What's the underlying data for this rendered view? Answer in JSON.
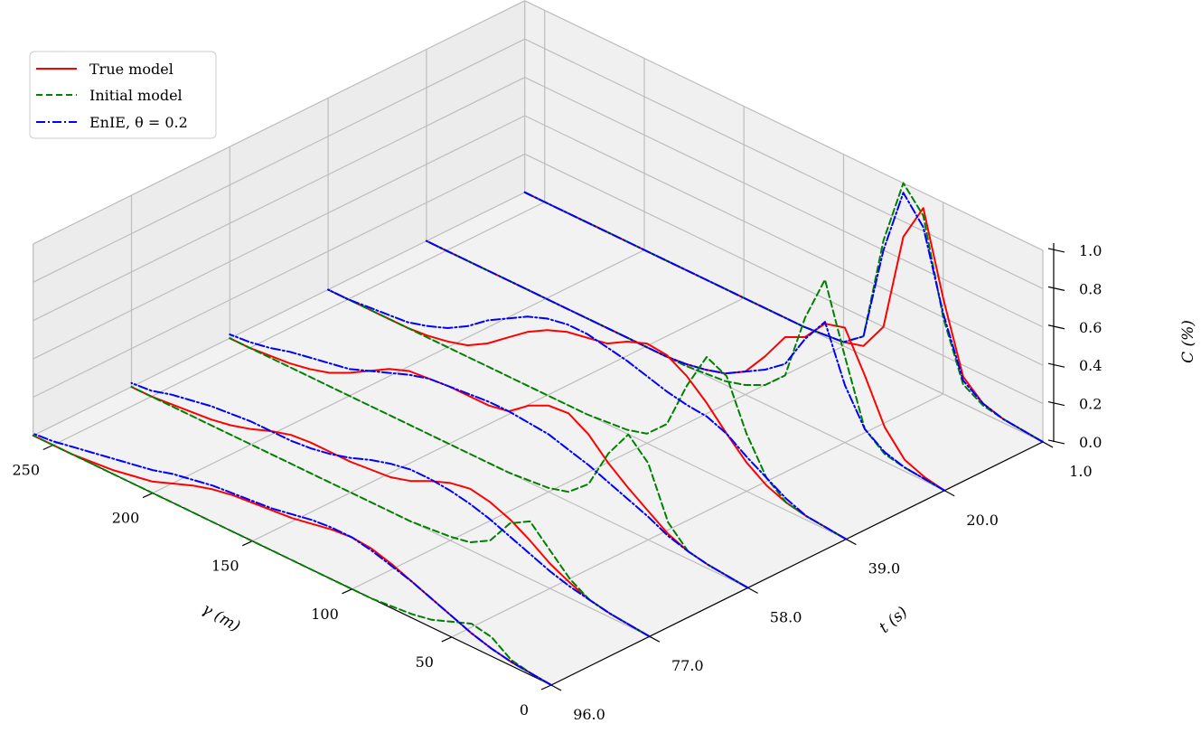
{
  "chart_data": {
    "type": "line",
    "title": "",
    "projection": "3d",
    "xlabel": "γ (m)",
    "ylabel": "t (s)",
    "zlabel": "C (%)",
    "xlim": [
      0,
      260
    ],
    "ylim": [
      96,
      1
    ],
    "zlim": [
      0,
      1.0
    ],
    "x_ticks": [
      "0",
      "50",
      "100",
      "150",
      "200",
      "250"
    ],
    "y_ticks": [
      "96.0",
      "77.0",
      "58.0",
      "39.0",
      "20.0",
      "1.0"
    ],
    "z_ticks": [
      "0.0",
      "0.2",
      "0.4",
      "0.6",
      "0.8",
      "1.0"
    ],
    "grid": true,
    "legend_position": "top-left",
    "gamma": [
      0,
      10,
      20,
      30,
      40,
      50,
      60,
      70,
      80,
      90,
      100,
      110,
      120,
      130,
      140,
      150,
      160,
      170,
      180,
      190,
      200,
      210,
      220,
      230,
      240,
      250,
      260
    ],
    "slices": [
      {
        "t": 1.0,
        "true_model": [
          0,
          0.01,
          0.02,
          0.05,
          0.14,
          0.5,
          0.92,
          0.72,
          0.2,
          0.05,
          0.02,
          0.01,
          0,
          0,
          0,
          0,
          0,
          0,
          0,
          0,
          0,
          0,
          0,
          0,
          0,
          0,
          0
        ],
        "initial_model": [
          0,
          0.01,
          0.02,
          0.04,
          0.1,
          0.4,
          0.88,
          1.0,
          0.65,
          0.1,
          0.02,
          0.01,
          0,
          0,
          0,
          0,
          0,
          0,
          0,
          0,
          0,
          0,
          0,
          0,
          0,
          0,
          0
        ],
        "enie": [
          0,
          0.01,
          0.02,
          0.05,
          0.12,
          0.42,
          0.82,
          0.95,
          0.6,
          0.1,
          0.02,
          0.01,
          0,
          0,
          0,
          0,
          0,
          0,
          0,
          0,
          0,
          0,
          0,
          0,
          0,
          0,
          0
        ]
      },
      {
        "t": 20.0,
        "true_model": [
          0,
          0.02,
          0.06,
          0.18,
          0.4,
          0.6,
          0.57,
          0.45,
          0.4,
          0.25,
          0.12,
          0.06,
          0.03,
          0.01,
          0,
          0,
          0,
          0,
          0,
          0,
          0,
          0,
          0,
          0,
          0,
          0,
          0
        ],
        "initial_model": [
          0,
          0.01,
          0.02,
          0.04,
          0.12,
          0.45,
          0.8,
          0.55,
          0.2,
          0.1,
          0.05,
          0.02,
          0.01,
          0,
          0,
          0,
          0,
          0,
          0,
          0,
          0,
          0,
          0,
          0,
          0,
          0,
          0
        ],
        "enie": [
          0,
          0.01,
          0.02,
          0.05,
          0.12,
          0.3,
          0.58,
          0.44,
          0.26,
          0.18,
          0.12,
          0.06,
          0.03,
          0.01,
          0,
          0,
          0,
          0,
          0,
          0,
          0,
          0,
          0,
          0,
          0,
          0,
          0
        ]
      },
      {
        "t": 39.0,
        "true_model": [
          0,
          0.01,
          0.02,
          0.04,
          0.08,
          0.15,
          0.25,
          0.36,
          0.45,
          0.51,
          0.52,
          0.48,
          0.42,
          0.4,
          0.38,
          0.34,
          0.28,
          0.2,
          0.12,
          0.06,
          0.03,
          0.01,
          0,
          0,
          0,
          0,
          0
        ],
        "initial_model": [
          0,
          0.01,
          0.02,
          0.04,
          0.12,
          0.3,
          0.55,
          0.6,
          0.4,
          0.15,
          0.05,
          0.02,
          0.01,
          0,
          0,
          0,
          0,
          0,
          0,
          0,
          0,
          0,
          0,
          0,
          0,
          0,
          0
        ],
        "enie": [
          0,
          0.01,
          0.02,
          0.06,
          0.12,
          0.18,
          0.25,
          0.29,
          0.3,
          0.32,
          0.35,
          0.38,
          0.4,
          0.42,
          0.42,
          0.4,
          0.36,
          0.3,
          0.24,
          0.16,
          0.1,
          0.06,
          0.03,
          0.02,
          0.01,
          0,
          0
        ]
      },
      {
        "t": 58.0,
        "true_model": [
          0,
          0.01,
          0.02,
          0.04,
          0.08,
          0.15,
          0.22,
          0.3,
          0.4,
          0.46,
          0.45,
          0.4,
          0.32,
          0.3,
          0.3,
          0.3,
          0.29,
          0.28,
          0.24,
          0.18,
          0.12,
          0.07,
          0.04,
          0.02,
          0.01,
          0,
          0
        ],
        "initial_model": [
          0,
          0.01,
          0.02,
          0.04,
          0.14,
          0.4,
          0.5,
          0.35,
          0.14,
          0.05,
          0.02,
          0.01,
          0,
          0,
          0,
          0,
          0,
          0,
          0,
          0,
          0,
          0,
          0,
          0,
          0,
          0,
          0
        ],
        "enie": [
          0,
          0.01,
          0.02,
          0.04,
          0.07,
          0.12,
          0.16,
          0.2,
          0.24,
          0.27,
          0.3,
          0.31,
          0.32,
          0.32,
          0.31,
          0.3,
          0.29,
          0.26,
          0.22,
          0.18,
          0.14,
          0.12,
          0.1,
          0.08,
          0.05,
          0.03,
          0.02
        ]
      },
      {
        "t": 77.0,
        "true_model": [
          0,
          0.01,
          0.02,
          0.04,
          0.08,
          0.13,
          0.2,
          0.26,
          0.3,
          0.32,
          0.3,
          0.26,
          0.21,
          0.18,
          0.17,
          0.16,
          0.16,
          0.16,
          0.15,
          0.12,
          0.08,
          0.05,
          0.03,
          0.02,
          0.01,
          0,
          0
        ],
        "initial_model": [
          0,
          0.01,
          0.02,
          0.04,
          0.1,
          0.2,
          0.3,
          0.24,
          0.1,
          0.04,
          0.02,
          0.01,
          0,
          0,
          0,
          0,
          0,
          0,
          0,
          0,
          0,
          0,
          0,
          0,
          0,
          0,
          0
        ],
        "enie": [
          0,
          0.01,
          0.02,
          0.04,
          0.06,
          0.09,
          0.13,
          0.17,
          0.21,
          0.24,
          0.26,
          0.27,
          0.27,
          0.25,
          0.22,
          0.18,
          0.15,
          0.13,
          0.12,
          0.12,
          0.12,
          0.11,
          0.1,
          0.08,
          0.06,
          0.03,
          0.02
        ]
      },
      {
        "t": 96.0,
        "true_model": [
          0,
          0.01,
          0.02,
          0.04,
          0.07,
          0.11,
          0.15,
          0.19,
          0.23,
          0.26,
          0.27,
          0.26,
          0.24,
          0.22,
          0.21,
          0.2,
          0.19,
          0.17,
          0.14,
          0.1,
          0.06,
          0.04,
          0.02,
          0.01,
          0,
          0,
          0
        ],
        "initial_model": [
          0,
          0.01,
          0.03,
          0.1,
          0.12,
          0.08,
          0.04,
          0.02,
          0.01,
          0,
          0,
          0,
          0,
          0,
          0,
          0,
          0,
          0,
          0,
          0,
          0,
          0,
          0,
          0,
          0,
          0,
          0
        ],
        "enie": [
          0,
          0.01,
          0.02,
          0.04,
          0.07,
          0.11,
          0.15,
          0.19,
          0.22,
          0.25,
          0.27,
          0.27,
          0.26,
          0.24,
          0.22,
          0.21,
          0.2,
          0.19,
          0.17,
          0.15,
          0.12,
          0.1,
          0.08,
          0.06,
          0.04,
          0.02,
          0.01
        ]
      }
    ],
    "series": [
      {
        "name": "True model",
        "key": "true_model",
        "color": "#ff0000",
        "dash": "solid"
      },
      {
        "name": "Initial model",
        "key": "initial_model",
        "color": "#008000",
        "dash": "dashed"
      },
      {
        "name": "EnIE, θ = 0.2",
        "key": "enie",
        "color": "#0000ff",
        "dash": "dashdot"
      }
    ]
  }
}
